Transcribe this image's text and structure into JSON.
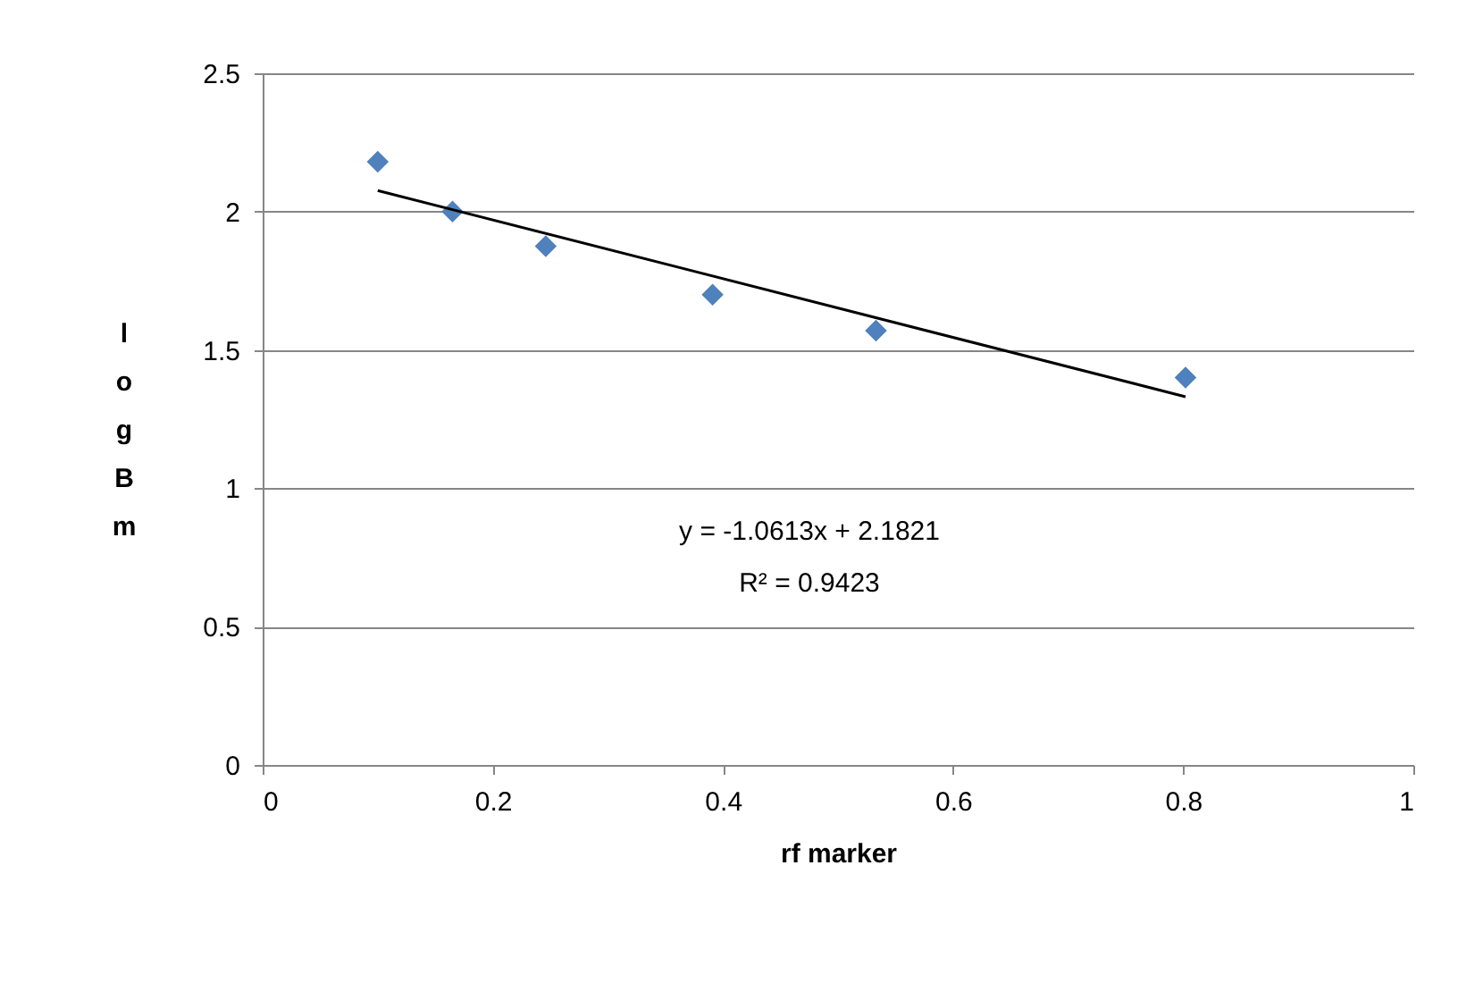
{
  "chart_data": {
    "type": "scatter",
    "xlabel": "rf marker",
    "ylabel": "log Bm",
    "xlim": [
      0,
      1
    ],
    "xticks": [
      0,
      0.2,
      0.4,
      0.6,
      0.8,
      1
    ],
    "ylim": [
      0,
      2.5
    ],
    "yticks": [
      0,
      0.5,
      1,
      1.5,
      2,
      2.5
    ],
    "grid": "y",
    "annotations": [
      "y = -1.0613x + 2.1821",
      "R² = 0.9423"
    ],
    "series": [
      {
        "color": "#4f81bd",
        "marker": "diamond",
        "x": [
          0.1,
          0.165,
          0.246,
          0.391,
          0.533,
          0.802
        ],
        "values": [
          2.18,
          2.0,
          1.875,
          1.7,
          1.57,
          1.4
        ]
      },
      {
        "type": "line",
        "color": "#000000",
        "x": [
          0.1,
          0.802
        ],
        "values": [
          2.076,
          1.331
        ]
      }
    ]
  }
}
